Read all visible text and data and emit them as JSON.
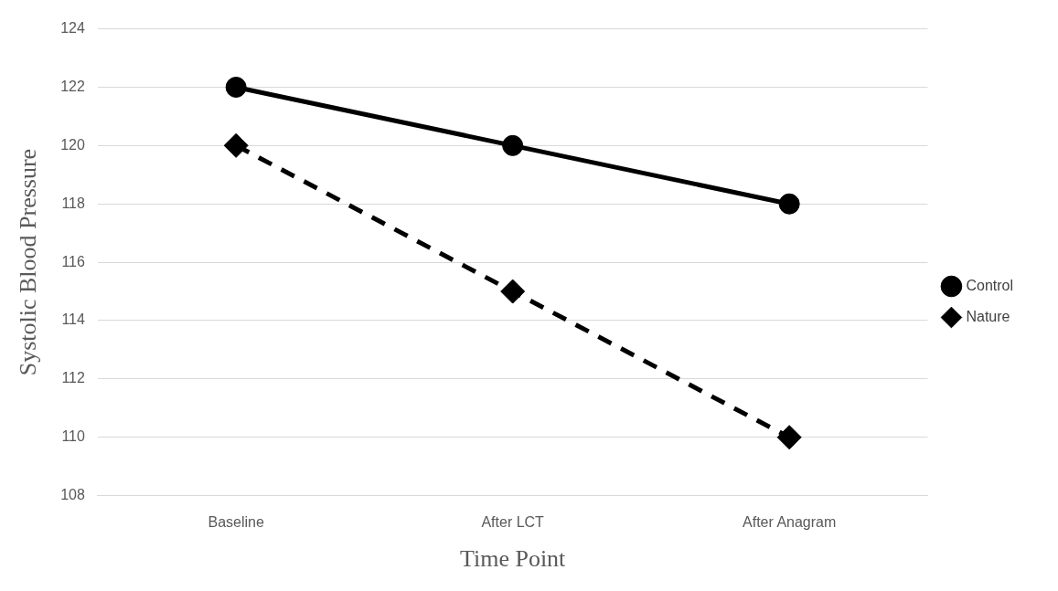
{
  "chart_data": {
    "type": "line",
    "xlabel": "Time Point",
    "ylabel": "Systolic Blood Pressure",
    "categories": [
      "Baseline",
      "After LCT",
      "After Anagram"
    ],
    "series": [
      {
        "name": "Control",
        "color": "#000000",
        "values": [
          122,
          120,
          118
        ],
        "marker": "circle",
        "line_style": "solid"
      },
      {
        "name": "Nature",
        "color": "#000000",
        "values": [
          120,
          115,
          110
        ],
        "marker": "diamond",
        "line_style": "dashed"
      }
    ],
    "ylim": [
      108,
      124
    ],
    "yticks": [
      108,
      110,
      112,
      114,
      116,
      118,
      120,
      122,
      124
    ],
    "grid": "y",
    "legend": "right"
  }
}
